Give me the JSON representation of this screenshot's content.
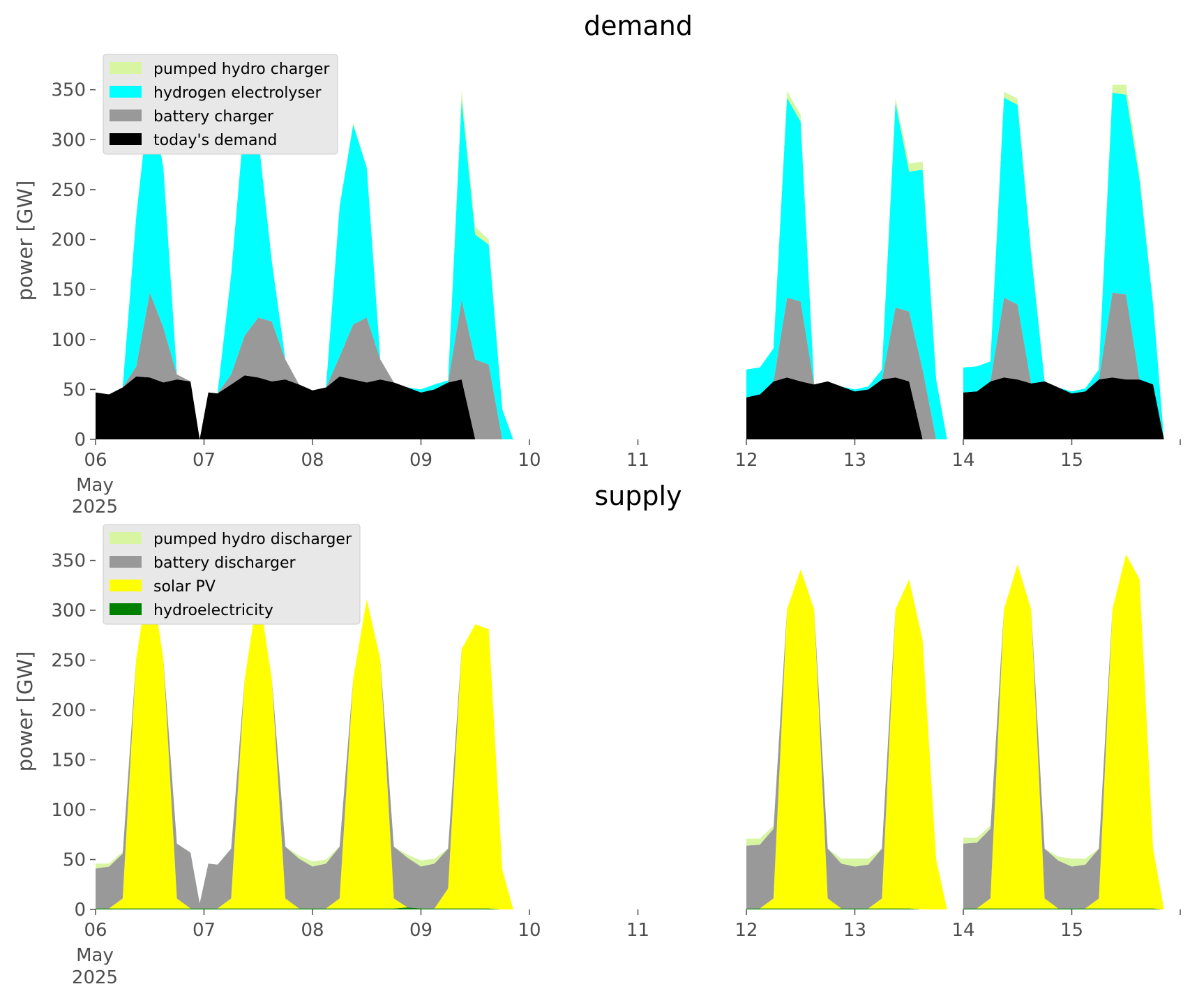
{
  "colors": {
    "pumped_hydro": "#d8f5a2",
    "hydrogen": "#00ffff",
    "battery": "#999999",
    "demand": "#000000",
    "solar": "#ffff00",
    "hydro": "#008000",
    "legend_bg": "#e8e8e8",
    "axis_text": "#4d4d4d"
  },
  "x_tick_labels": [
    "06",
    "07",
    "08",
    "09",
    "10",
    "11",
    "12",
    "13",
    "14",
    "15"
  ],
  "x_sub_month": "May",
  "x_sub_year": "2025",
  "chart_data": [
    {
      "type": "area",
      "title": "demand",
      "ylabel": "power [GW]",
      "xlabel": "",
      "xlim": [
        0,
        10
      ],
      "ylim": [
        0,
        370
      ],
      "y_ticks": [
        "0",
        "50",
        "100",
        "150",
        "200",
        "250",
        "300",
        "350"
      ],
      "y_tick_values": [
        0,
        50,
        100,
        150,
        200,
        250,
        300,
        350
      ],
      "grid": false,
      "legend_position": "top-left",
      "stacked": true,
      "segments": [
        {
          "x": [
            0,
            0.125,
            0.25,
            0.375,
            0.5,
            0.625,
            0.75,
            0.875,
            0.96,
            1.04,
            1.125,
            1.25,
            1.375,
            1.5,
            1.625,
            1.75,
            1.875,
            2.0,
            2.125,
            2.25,
            2.375,
            2.5,
            2.625,
            2.75,
            2.875,
            3.0,
            3.125,
            3.25,
            3.375,
            3.5,
            3.625,
            3.75,
            3.85
          ],
          "series": [
            {
              "name": "today's demand",
              "values": [
                47,
                45,
                52,
                63,
                62,
                57,
                60,
                58,
                0,
                47,
                46,
                55,
                64,
                62,
                58,
                60,
                55,
                49,
                52,
                63,
                60,
                57,
                60,
                57,
                52,
                47,
                50,
                57,
                60,
                0,
                0,
                0,
                0
              ]
            },
            {
              "name": "battery charger",
              "values": [
                0,
                0,
                0,
                10,
                85,
                55,
                5,
                0,
                0,
                0,
                0,
                10,
                40,
                60,
                60,
                20,
                0,
                0,
                0,
                20,
                55,
                65,
                20,
                0,
                0,
                0,
                0,
                0,
                80,
                80,
                75,
                0,
                0
              ]
            },
            {
              "name": "hydrogen electrolyser",
              "values": [
                0,
                0,
                0,
                150,
                200,
                160,
                0,
                0,
                0,
                0,
                0,
                100,
                220,
                180,
                60,
                0,
                0,
                0,
                0,
                150,
                200,
                150,
                0,
                0,
                0,
                3,
                5,
                2,
                200,
                125,
                120,
                30,
                0
              ]
            },
            {
              "name": "pumped hydro charger",
              "values": [
                0,
                0,
                0,
                0,
                0,
                0,
                0,
                0,
                0,
                0,
                0,
                0,
                0,
                0,
                0,
                0,
                0,
                0,
                0,
                0,
                2,
                0,
                0,
                0,
                0,
                0,
                0,
                0,
                10,
                8,
                5,
                0,
                0
              ]
            }
          ]
        },
        {
          "x": [
            6.0,
            6.125,
            6.25,
            6.375,
            6.5,
            6.625,
            6.75,
            6.875,
            7.0,
            7.125,
            7.25,
            7.375,
            7.5,
            7.625,
            7.75,
            7.85
          ],
          "series": [
            {
              "name": "today's demand",
              "values": [
                42,
                45,
                58,
                62,
                58,
                55,
                58,
                53,
                48,
                50,
                60,
                62,
                58,
                0,
                0,
                0
              ]
            },
            {
              "name": "battery charger",
              "values": [
                0,
                0,
                0,
                80,
                80,
                0,
                0,
                0,
                0,
                0,
                0,
                70,
                70,
                70,
                0,
                0
              ]
            },
            {
              "name": "hydrogen electrolyser",
              "values": [
                28,
                27,
                33,
                200,
                180,
                0,
                0,
                0,
                2,
                3,
                10,
                205,
                140,
                200,
                60,
                0
              ]
            },
            {
              "name": "pumped hydro charger",
              "values": [
                0,
                0,
                0,
                7,
                7,
                0,
                0,
                0,
                0,
                0,
                0,
                5,
                8,
                8,
                0,
                0
              ]
            }
          ]
        },
        {
          "x": [
            8.0,
            8.125,
            8.25,
            8.375,
            8.5,
            8.625,
            8.75,
            8.875,
            9.0,
            9.125,
            9.25,
            9.375,
            9.5,
            9.625,
            9.75,
            9.85
          ],
          "series": [
            {
              "name": "today's demand",
              "values": [
                47,
                48,
                58,
                62,
                60,
                56,
                58,
                52,
                46,
                48,
                60,
                62,
                60,
                60,
                55,
                0
              ]
            },
            {
              "name": "battery charger",
              "values": [
                0,
                0,
                0,
                80,
                75,
                0,
                0,
                0,
                0,
                0,
                0,
                85,
                85,
                0,
                0,
                0
              ]
            },
            {
              "name": "hydrogen electrolyser",
              "values": [
                25,
                25,
                20,
                200,
                200,
                130,
                0,
                0,
                2,
                3,
                10,
                200,
                200,
                200,
                80,
                0
              ]
            },
            {
              "name": "pumped hydro charger",
              "values": [
                0,
                0,
                0,
                6,
                6,
                6,
                0,
                0,
                0,
                0,
                0,
                8,
                10,
                8,
                0,
                0
              ]
            }
          ]
        }
      ]
    },
    {
      "type": "area",
      "title": "supply",
      "ylabel": "power [GW]",
      "xlabel": "",
      "xlim": [
        0,
        10
      ],
      "ylim": [
        0,
        370
      ],
      "y_ticks": [
        "0",
        "50",
        "100",
        "150",
        "200",
        "250",
        "300",
        "350"
      ],
      "y_tick_values": [
        0,
        50,
        100,
        150,
        200,
        250,
        300,
        350
      ],
      "grid": false,
      "legend_position": "top-left",
      "stacked": true,
      "segments": [
        {
          "x": [
            0,
            0.125,
            0.25,
            0.375,
            0.5,
            0.625,
            0.75,
            0.875,
            0.96,
            1.04,
            1.125,
            1.25,
            1.375,
            1.5,
            1.625,
            1.75,
            1.875,
            2.0,
            2.125,
            2.25,
            2.375,
            2.5,
            2.625,
            2.75,
            2.875,
            3.0,
            3.125,
            3.25,
            3.375,
            3.5,
            3.625,
            3.75,
            3.85
          ],
          "series": [
            {
              "name": "hydroelectricity",
              "values": [
                1,
                1,
                1,
                1,
                1,
                1,
                1,
                1,
                1,
                1,
                1,
                1,
                1,
                1,
                1,
                1,
                1,
                1,
                1,
                1,
                1,
                1,
                1,
                1,
                2,
                1,
                1,
                1,
                1,
                1,
                1,
                0,
                0
              ]
            },
            {
              "name": "solar PV",
              "values": [
                0,
                0,
                10,
                250,
                340,
                250,
                10,
                0,
                0,
                0,
                0,
                10,
                230,
                320,
                230,
                10,
                0,
                0,
                0,
                10,
                230,
                310,
                250,
                10,
                0,
                0,
                0,
                20,
                260,
                285,
                280,
                40,
                0
              ]
            },
            {
              "name": "battery discharger",
              "values": [
                40,
                42,
                45,
                0,
                0,
                0,
                55,
                56,
                5,
                45,
                44,
                50,
                0,
                0,
                0,
                52,
                50,
                42,
                45,
                52,
                0,
                0,
                0,
                52,
                50,
                42,
                45,
                40,
                0,
                0,
                0,
                0,
                0
              ]
            },
            {
              "name": "pumped hydro discharger",
              "values": [
                5,
                3,
                2,
                0,
                0,
                0,
                0,
                0,
                0,
                0,
                0,
                0,
                0,
                0,
                0,
                0,
                3,
                5,
                4,
                0,
                0,
                0,
                0,
                0,
                3,
                6,
                5,
                0,
                0,
                0,
                0,
                0,
                0
              ]
            }
          ]
        },
        {
          "x": [
            6.0,
            6.125,
            6.25,
            6.375,
            6.5,
            6.625,
            6.75,
            6.875,
            7.0,
            7.125,
            7.25,
            7.375,
            7.5,
            7.625,
            7.75,
            7.85
          ],
          "series": [
            {
              "name": "hydroelectricity",
              "values": [
                1,
                1,
                1,
                1,
                1,
                1,
                1,
                1,
                1,
                1,
                1,
                1,
                1,
                0,
                0,
                0
              ]
            },
            {
              "name": "solar PV",
              "values": [
                0,
                0,
                10,
                300,
                340,
                300,
                10,
                0,
                0,
                0,
                10,
                300,
                330,
                270,
                50,
                0
              ]
            },
            {
              "name": "battery discharger",
              "values": [
                63,
                64,
                70,
                0,
                0,
                0,
                50,
                45,
                42,
                44,
                50,
                0,
                0,
                0,
                0,
                0
              ]
            },
            {
              "name": "pumped hydro discharger",
              "values": [
                7,
                6,
                3,
                0,
                0,
                0,
                0,
                5,
                8,
                6,
                0,
                0,
                0,
                0,
                0,
                0
              ]
            }
          ]
        },
        {
          "x": [
            8.0,
            8.125,
            8.25,
            8.375,
            8.5,
            8.625,
            8.75,
            8.875,
            9.0,
            9.125,
            9.25,
            9.375,
            9.5,
            9.625,
            9.75,
            9.85
          ],
          "series": [
            {
              "name": "hydroelectricity",
              "values": [
                1,
                1,
                1,
                1,
                1,
                1,
                1,
                1,
                1,
                1,
                1,
                1,
                1,
                1,
                1,
                0
              ]
            },
            {
              "name": "solar PV",
              "values": [
                0,
                0,
                10,
                300,
                345,
                300,
                10,
                0,
                0,
                0,
                10,
                300,
                355,
                330,
                60,
                0
              ]
            },
            {
              "name": "battery discharger",
              "values": [
                65,
                66,
                70,
                0,
                0,
                0,
                50,
                48,
                42,
                44,
                50,
                0,
                0,
                0,
                0,
                0
              ]
            },
            {
              "name": "pumped hydro discharger",
              "values": [
                6,
                5,
                3,
                0,
                0,
                0,
                0,
                4,
                8,
                6,
                0,
                0,
                0,
                0,
                0,
                0
              ]
            }
          ]
        }
      ]
    }
  ]
}
